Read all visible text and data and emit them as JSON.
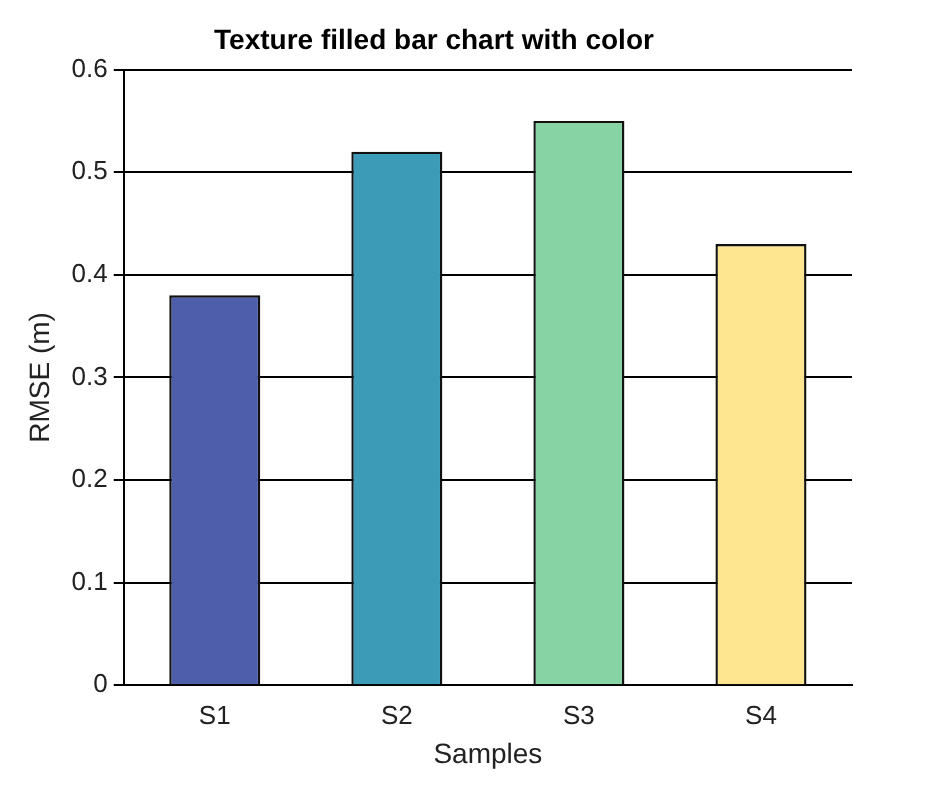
{
  "chart_data": {
    "type": "bar",
    "title": "Texture filled bar chart with color",
    "xlabel": "Samples",
    "ylabel": "RMSE (m)",
    "categories": [
      "S1",
      "S2",
      "S3",
      "S4"
    ],
    "values": [
      0.38,
      0.52,
      0.55,
      0.43
    ],
    "colors": [
      "#4f5eab",
      "#3c9bb6",
      "#88d3a4",
      "#fde68f"
    ],
    "ylim": [
      0,
      0.6
    ],
    "yticks": [
      0,
      0.1,
      0.2,
      0.3,
      0.4,
      0.5,
      0.6
    ],
    "grid": "y"
  }
}
